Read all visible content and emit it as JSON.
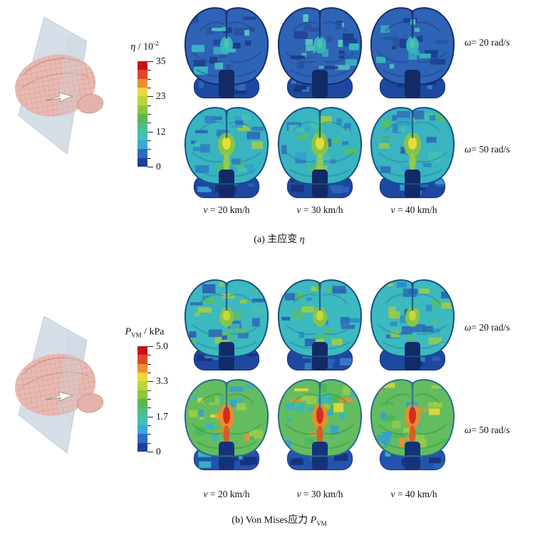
{
  "figure": {
    "background": "#ffffff",
    "panels": [
      {
        "name": "panel-a",
        "colorbar": {
          "title": {
            "symbol": "η",
            "sub": "",
            "rest": " / 10",
            "sup": "-2"
          },
          "tick_labels": [
            "35",
            "23",
            "12",
            "0"
          ],
          "colors": [
            "#c9101c",
            "#e1472a",
            "#ef8c36",
            "#ead83c",
            "#bcd43a",
            "#8cc540",
            "#5bb74b",
            "#4dbd8e",
            "#3fc0b6",
            "#3aa8d8",
            "#2f6bbf",
            "#1d3f9b"
          ]
        },
        "row_labels": [
          {
            "symbol": "ω",
            "text": "= 20 rad/s"
          },
          {
            "symbol": "ω",
            "text": "= 50 rad/s"
          }
        ],
        "col_labels": [
          {
            "symbol": "v",
            "text": " = 20 km/h"
          },
          {
            "symbol": "v",
            "text": " = 30 km/h"
          },
          {
            "symbol": "v",
            "text": " = 40 km/h"
          }
        ],
        "caption": {
          "prefix": "(a)  主应变 ",
          "symbol": "η",
          "sub": ""
        },
        "rows": [
          {
            "palette": {
              "base": "#2e63b5",
              "patches": [
                "#38b8bd",
                "#1e418f",
                "#55c3c3",
                "#27539f",
                "#2e63b5",
                "#163a85"
              ],
              "line": "#1c3c8a",
              "outline": "#142e6e",
              "cereb": "#1e48a0",
              "cereb_patch": [
                "#2e63b5",
                "#3a7ec5",
                "#16327a"
              ],
              "stem": "#122a66",
              "hot_out": "#38b8bd",
              "hot_in": "#4ac3ae",
              "hw": 9,
              "hh": 12,
              "iw": 4,
              "ih": 6,
              "streak": ""
            }
          },
          {
            "palette": {
              "base": "#39b4c0",
              "patches": [
                "#54bd6d",
                "#2e63b5",
                "#35a0d0",
                "#9ccb49",
                "#46c0b2",
                "#2e7fc0"
              ],
              "line": "#1f7fa0",
              "outline": "#14508a",
              "cereb": "#1e48a0",
              "cereb_patch": [
                "#2e63b5",
                "#35a0d0",
                "#16327a"
              ],
              "stem": "#122a66",
              "hot_out": "#8cc540",
              "hot_in": "#e5dd3a",
              "hw": 12,
              "hh": 17,
              "iw": 6,
              "ih": 9,
              "streak": "#9ccb49"
            }
          }
        ]
      },
      {
        "name": "panel-b",
        "colorbar": {
          "title": {
            "symbol": "P",
            "sub": "VM",
            "rest": " / kPa",
            "sup": ""
          },
          "tick_labels": [
            "5.0",
            "3.3",
            "1.7",
            "0"
          ],
          "colors": [
            "#c9101c",
            "#e1472a",
            "#ef8c36",
            "#ead83c",
            "#bcd43a",
            "#8cc540",
            "#5bb74b",
            "#4dbd8e",
            "#3fc0b6",
            "#3aa8d8",
            "#2f6bbf",
            "#1d3f9b"
          ]
        },
        "row_labels": [
          {
            "symbol": "ω",
            "text": "= 20 rad/s"
          },
          {
            "symbol": "ω",
            "text": "= 50 rad/s"
          }
        ],
        "col_labels": [
          {
            "symbol": "v",
            "text": " = 20 km/h"
          },
          {
            "symbol": "v",
            "text": " = 30 km/h"
          },
          {
            "symbol": "v",
            "text": " = 40 km/h"
          }
        ],
        "caption": {
          "prefix": "(b)  Von Mises应力 ",
          "symbol": "P",
          "sub": "VM"
        },
        "rows": [
          {
            "palette": {
              "base": "#3db9c0",
              "patches": [
                "#2e63b5",
                "#57bd6b",
                "#2a8fc9",
                "#9ccb49",
                "#46c0b2",
                "#2e63b5"
              ],
              "line": "#1f7fa0",
              "outline": "#14508a",
              "cereb": "#1e48a0",
              "cereb_patch": [
                "#2e63b5",
                "#3a7ec5",
                "#16327a"
              ],
              "stem": "#122a66",
              "hot_out": "#8cc540",
              "hot_in": "#c8d83c",
              "hw": 10,
              "hh": 14,
              "iw": 5,
              "ih": 7,
              "streak": ""
            }
          },
          {
            "palette": {
              "base": "#63bd60",
              "patches": [
                "#e3d93b",
                "#39b4c0",
                "#ef8c36",
                "#9ccb49",
                "#45b85a",
                "#35a0d0"
              ],
              "line": "#3a8a3a",
              "outline": "#2a6b8a",
              "cereb": "#2453ae",
              "cereb_patch": [
                "#3db9c0",
                "#2e63b5",
                "#16327a"
              ],
              "stem": "#16327a",
              "hot_out": "#f08a2d",
              "hot_in": "#d92a1f",
              "hw": 11,
              "hh": 18,
              "iw": 5,
              "ih": 12,
              "streak": "#e2521f"
            }
          }
        ]
      }
    ],
    "model_colors": {
      "plane": "#d3dce6",
      "brain": "#e9bab2",
      "mesh_line": "#c9908a",
      "arrow": "#fcfcf2"
    }
  },
  "chart_data": [
    {
      "type": "heatmap",
      "title": "(a) 主应变 η",
      "colorbar_label": "η / 10^-2",
      "colorbar_ticks": [
        35,
        23,
        12,
        0
      ],
      "value_range": [
        0,
        35
      ],
      "rows": [
        "ω = 20 rad/s",
        "ω = 50 rad/s"
      ],
      "columns": [
        "v = 20 km/h",
        "v = 30 km/h",
        "v = 40 km/h"
      ],
      "legend_position": "left",
      "cells": [
        {
          "row": "ω = 20 rad/s",
          "col": "v = 20 km/h",
          "dominant_value": 6,
          "peak_value": 14
        },
        {
          "row": "ω = 20 rad/s",
          "col": "v = 30 km/h",
          "dominant_value": 6,
          "peak_value": 15
        },
        {
          "row": "ω = 20 rad/s",
          "col": "v = 40 km/h",
          "dominant_value": 7,
          "peak_value": 17
        },
        {
          "row": "ω = 50 rad/s",
          "col": "v = 20 km/h",
          "dominant_value": 14,
          "peak_value": 27
        },
        {
          "row": "ω = 50 rad/s",
          "col": "v = 30 km/h",
          "dominant_value": 15,
          "peak_value": 28
        },
        {
          "row": "ω = 50 rad/s",
          "col": "v = 40 km/h",
          "dominant_value": 16,
          "peak_value": 30
        }
      ],
      "notes": "Coronal brain sections; strain concentrates at central corpus-callosum region (yellow-green hotspot at ω=50 rad/s); cerebellum/brainstem region lowest (dark blue)."
    },
    {
      "type": "heatmap",
      "title": "(b) Von Mises应力 P_VM",
      "colorbar_label": "P_VM / kPa",
      "colorbar_ticks": [
        5.0,
        3.3,
        1.7,
        0
      ],
      "value_range": [
        0,
        5
      ],
      "rows": [
        "ω = 20 rad/s",
        "ω = 50 rad/s"
      ],
      "columns": [
        "v = 20 km/h",
        "v = 30 km/h",
        "v = 40 km/h"
      ],
      "legend_position": "left",
      "cells": [
        {
          "row": "ω = 20 rad/s",
          "col": "v = 20 km/h",
          "dominant_value": 1.6,
          "peak_value": 2.8
        },
        {
          "row": "ω = 20 rad/s",
          "col": "v = 30 km/h",
          "dominant_value": 1.7,
          "peak_value": 2.9
        },
        {
          "row": "ω = 20 rad/s",
          "col": "v = 40 km/h",
          "dominant_value": 1.8,
          "peak_value": 3.0
        },
        {
          "row": "ω = 50 rad/s",
          "col": "v = 20 km/h",
          "dominant_value": 2.8,
          "peak_value": 5.0
        },
        {
          "row": "ω = 50 rad/s",
          "col": "v = 30 km/h",
          "dominant_value": 2.9,
          "peak_value": 5.0
        },
        {
          "row": "ω = 50 rad/s",
          "col": "v = 40 km/h",
          "dominant_value": 3.0,
          "peak_value": 5.0
        }
      ],
      "notes": "Green-dominant sections at ω=50 rad/s with red central stress hotspot reaching colorbar maximum; cerebellum region remains low (blue)."
    }
  ]
}
